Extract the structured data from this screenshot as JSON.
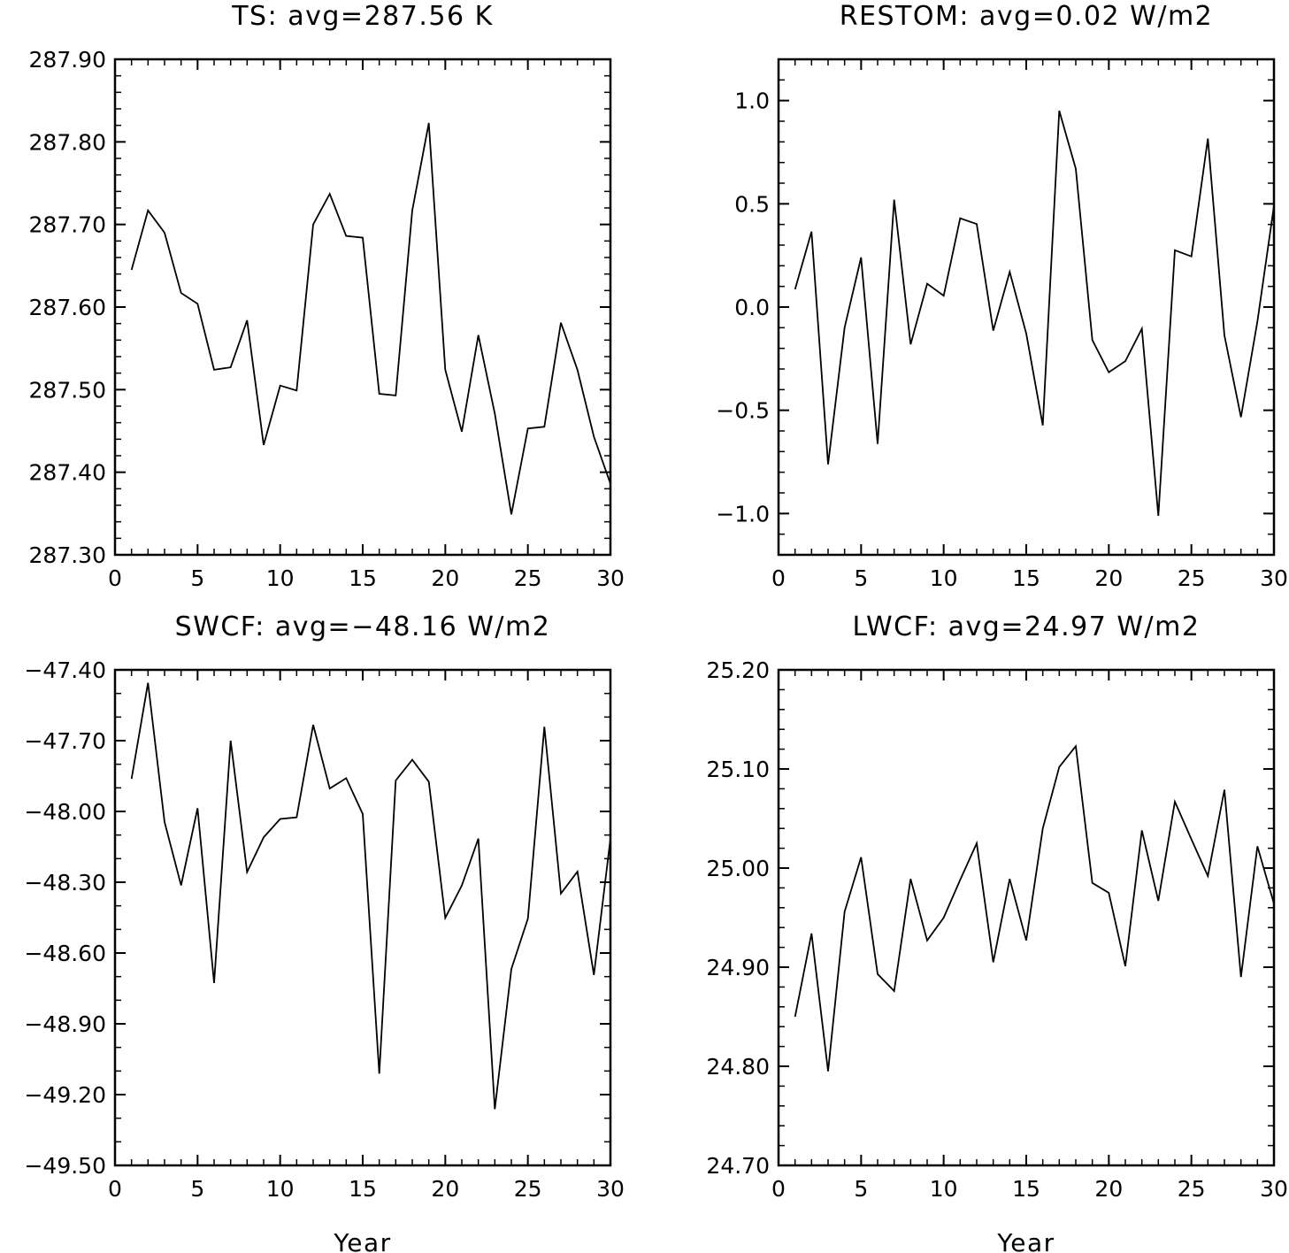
{
  "line_color": "#000000",
  "background": "#ffffff",
  "chart_data": [
    {
      "type": "line",
      "title": "TS: avg=287.56 K",
      "xlabel": "",
      "ylabel": "",
      "xlim": [
        0,
        30
      ],
      "ylim": [
        287.3,
        287.9
      ],
      "x_ticks": [
        0,
        5,
        10,
        15,
        20,
        25,
        30
      ],
      "x_tick_labels": [
        "0",
        "5",
        "10",
        "15",
        "20",
        "25",
        "30"
      ],
      "y_ticks": [
        287.3,
        287.4,
        287.5,
        287.6,
        287.7,
        287.8,
        287.9
      ],
      "y_tick_labels": [
        "287.30",
        "287.40",
        "287.50",
        "287.60",
        "287.70",
        "287.80",
        "287.90"
      ],
      "y_minor_step": 0.02,
      "grid": false,
      "x": [
        1,
        2,
        3,
        4,
        5,
        6,
        7,
        8,
        9,
        10,
        11,
        12,
        13,
        14,
        15,
        16,
        17,
        18,
        19,
        20,
        21,
        22,
        23,
        24,
        25,
        26,
        27,
        28,
        29,
        30
      ],
      "values": [
        287.645,
        287.717,
        287.69,
        287.617,
        287.604,
        287.524,
        287.527,
        287.584,
        287.433,
        287.505,
        287.499,
        287.7,
        287.737,
        287.686,
        287.684,
        287.495,
        287.493,
        287.717,
        287.823,
        287.524,
        287.449,
        287.566,
        287.471,
        287.349,
        287.453,
        287.455,
        287.581,
        287.524,
        287.443,
        287.386
      ]
    },
    {
      "type": "line",
      "title": "RESTOM: avg=0.02 W/m2",
      "xlabel": "",
      "ylabel": "",
      "xlim": [
        0,
        30
      ],
      "ylim": [
        -1.2,
        1.2
      ],
      "x_ticks": [
        0,
        5,
        10,
        15,
        20,
        25,
        30
      ],
      "x_tick_labels": [
        "0",
        "5",
        "10",
        "15",
        "20",
        "25",
        "30"
      ],
      "y_ticks": [
        -1.0,
        -0.5,
        0.0,
        0.5,
        1.0
      ],
      "y_tick_labels": [
        "−1.0",
        "−0.5",
        "0.0",
        "0.5",
        "1.0"
      ],
      "y_minor_step": 0.1,
      "grid": false,
      "x": [
        1,
        2,
        3,
        4,
        5,
        6,
        7,
        8,
        9,
        10,
        11,
        12,
        13,
        14,
        15,
        16,
        17,
        18,
        19,
        20,
        21,
        22,
        23,
        24,
        25,
        26,
        27,
        28,
        29,
        30
      ],
      "values": [
        0.086,
        0.365,
        -0.762,
        -0.099,
        0.24,
        -0.663,
        0.52,
        -0.181,
        0.113,
        0.055,
        0.43,
        0.402,
        -0.114,
        0.17,
        -0.128,
        -0.573,
        0.951,
        0.67,
        -0.16,
        -0.316,
        -0.262,
        -0.105,
        -1.011,
        0.275,
        0.245,
        0.816,
        -0.137,
        -0.533,
        -0.07,
        0.49
      ]
    },
    {
      "type": "line",
      "title": "SWCF: avg=−48.16 W/m2",
      "xlabel": "Year",
      "ylabel": "",
      "xlim": [
        0,
        30
      ],
      "ylim": [
        -49.5,
        -47.4
      ],
      "x_ticks": [
        0,
        5,
        10,
        15,
        20,
        25,
        30
      ],
      "x_tick_labels": [
        "0",
        "5",
        "10",
        "15",
        "20",
        "25",
        "30"
      ],
      "y_ticks": [
        -49.5,
        -49.2,
        -48.9,
        -48.6,
        -48.3,
        -48.0,
        -47.7,
        -47.4
      ],
      "y_tick_labels": [
        "−49.50",
        "−49.20",
        "−48.90",
        "−48.60",
        "−48.30",
        "−48.00",
        "−47.70",
        "−47.40"
      ],
      "y_minor_step": 0.1,
      "grid": false,
      "x": [
        1,
        2,
        3,
        4,
        5,
        6,
        7,
        8,
        9,
        10,
        11,
        12,
        13,
        14,
        15,
        16,
        17,
        18,
        19,
        20,
        21,
        22,
        23,
        24,
        25,
        26,
        27,
        28,
        29,
        30
      ],
      "values": [
        -47.862,
        -47.455,
        -48.045,
        -48.313,
        -47.986,
        -48.727,
        -47.7,
        -48.257,
        -48.11,
        -48.032,
        -48.025,
        -47.633,
        -47.903,
        -47.859,
        -48.011,
        -49.111,
        -47.869,
        -47.781,
        -47.874,
        -48.451,
        -48.314,
        -48.115,
        -49.262,
        -48.668,
        -48.454,
        -47.641,
        -48.348,
        -48.255,
        -48.693,
        -48.115
      ]
    },
    {
      "type": "line",
      "title": "LWCF: avg=24.97 W/m2",
      "xlabel": "Year",
      "ylabel": "",
      "xlim": [
        0,
        30
      ],
      "ylim": [
        24.7,
        25.2
      ],
      "x_ticks": [
        0,
        5,
        10,
        15,
        20,
        25,
        30
      ],
      "x_tick_labels": [
        "0",
        "5",
        "10",
        "15",
        "20",
        "25",
        "30"
      ],
      "y_ticks": [
        24.7,
        24.8,
        24.9,
        25.0,
        25.1,
        25.2
      ],
      "y_tick_labels": [
        "24.70",
        "24.80",
        "24.90",
        "25.00",
        "25.10",
        "25.20"
      ],
      "y_minor_step": 0.02,
      "grid": false,
      "x": [
        1,
        2,
        3,
        4,
        5,
        6,
        7,
        8,
        9,
        10,
        11,
        12,
        13,
        14,
        15,
        16,
        17,
        18,
        19,
        20,
        21,
        22,
        23,
        24,
        25,
        26,
        27,
        28,
        29,
        30
      ],
      "values": [
        24.85,
        24.934,
        24.795,
        24.956,
        25.011,
        24.893,
        24.876,
        24.989,
        24.927,
        24.95,
        24.988,
        25.025,
        24.905,
        24.989,
        24.927,
        25.04,
        25.102,
        25.123,
        24.985,
        24.975,
        24.901,
        25.038,
        24.967,
        25.067,
        25.029,
        24.992,
        25.079,
        24.89,
        25.022,
        24.964
      ]
    }
  ]
}
